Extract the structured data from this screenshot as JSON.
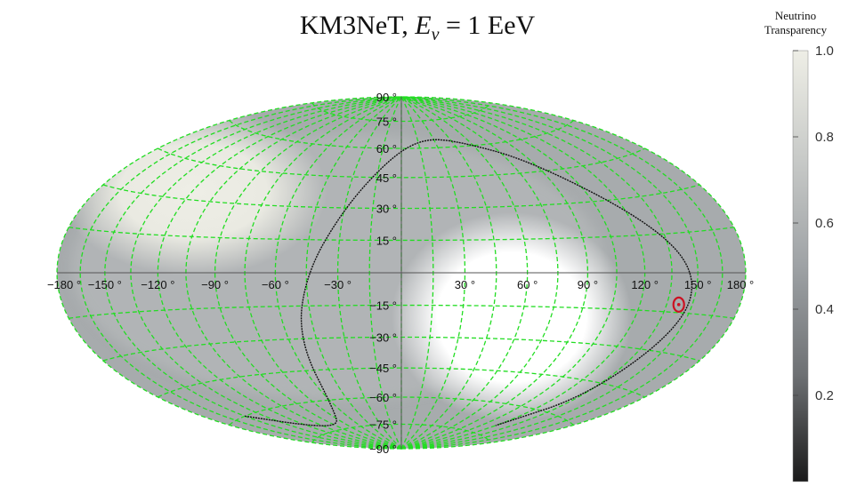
{
  "chart_data": {
    "type": "heatmap",
    "projection": "Hammer-Aitoff",
    "title_parts": {
      "main": "KM3NeT, ",
      "var": "E",
      "sub": "ν",
      "rest": " = 1 EeV"
    },
    "lon_ticks": [
      "−180 °",
      "−150 °",
      "−120 °",
      "−90 °",
      "−60 °",
      "−30 °",
      "30 °",
      "60 °",
      "90 °",
      "120 °",
      "150 °",
      "180 °"
    ],
    "lon_values": [
      -180,
      -150,
      -120,
      -90,
      -60,
      -30,
      30,
      60,
      90,
      120,
      150,
      180
    ],
    "lat_ticks": [
      "90 °",
      "75 °",
      "60 °",
      "45 °",
      "30 °",
      "15 °",
      "−15 °",
      "−30 °",
      "−45 °",
      "−60 °",
      "−75 °",
      "−90 °"
    ],
    "lat_values": [
      90,
      75,
      60,
      45,
      30,
      15,
      -15,
      -30,
      -45,
      -60,
      -75,
      -90
    ],
    "grid_spacing_deg": 15,
    "grid_color": "#22dd22",
    "colorbar": {
      "title_line1": "Neutrino",
      "title_line2": "Transparency",
      "ticks": [
        "1.0",
        "0.8",
        "0.6",
        "0.4",
        "0.2"
      ],
      "tick_values": [
        1.0,
        0.8,
        0.6,
        0.4,
        0.2
      ],
      "range": [
        0,
        1
      ],
      "colormap": [
        "#1a1a1a",
        "#6e7174",
        "#9ea2a5",
        "#c8cac8",
        "#eeeee6"
      ]
    },
    "field_regions": [
      {
        "name": "bright-white-region",
        "lon": 55,
        "lat": -20,
        "value": 1.0
      },
      {
        "name": "light-region",
        "lon": -115,
        "lat": 30,
        "value": 0.85
      }
    ],
    "background_value": 0.7,
    "curve": {
      "color": "#111111",
      "points": [
        [
          -150,
          -60
        ],
        [
          -120,
          -70
        ],
        [
          -90,
          -73
        ],
        [
          -70,
          -68
        ],
        [
          -55,
          -30
        ],
        [
          -45,
          0
        ],
        [
          -30,
          30
        ],
        [
          -8,
          55
        ],
        [
          20,
          65
        ],
        [
          50,
          63
        ],
        [
          90,
          50
        ],
        [
          130,
          20
        ],
        [
          150,
          0
        ],
        [
          150,
          -20
        ],
        [
          140,
          -50
        ],
        [
          120,
          -70
        ]
      ]
    },
    "marker": {
      "lon": 142,
      "lat": -12,
      "color": "#cc1122"
    }
  }
}
